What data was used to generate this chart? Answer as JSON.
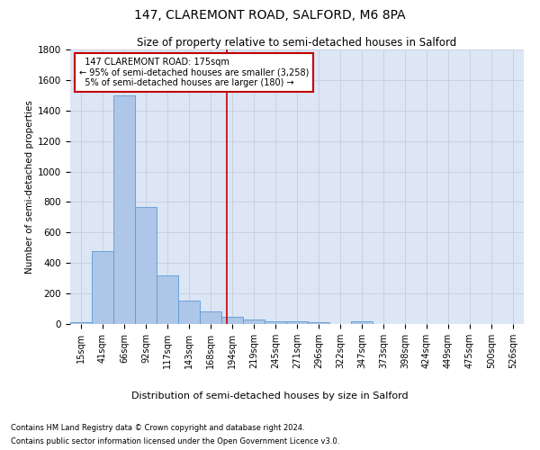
{
  "title": "147, CLAREMONT ROAD, SALFORD, M6 8PA",
  "subtitle": "Size of property relative to semi-detached houses in Salford",
  "xlabel": "Distribution of semi-detached houses by size in Salford",
  "ylabel": "Number of semi-detached properties",
  "footer1": "Contains HM Land Registry data © Crown copyright and database right 2024.",
  "footer2": "Contains public sector information licensed under the Open Government Licence v3.0.",
  "categories": [
    "15sqm",
    "41sqm",
    "66sqm",
    "92sqm",
    "117sqm",
    "143sqm",
    "168sqm",
    "194sqm",
    "219sqm",
    "245sqm",
    "271sqm",
    "296sqm",
    "322sqm",
    "347sqm",
    "373sqm",
    "398sqm",
    "424sqm",
    "449sqm",
    "475sqm",
    "500sqm",
    "526sqm"
  ],
  "values": [
    10,
    480,
    1500,
    770,
    320,
    155,
    80,
    45,
    30,
    15,
    15,
    10,
    0,
    15,
    0,
    0,
    0,
    0,
    0,
    0,
    0
  ],
  "bar_color": "#aec6e8",
  "bar_edge_color": "#5b9bd5",
  "vline_color": "#c00000",
  "vline_x": 6.75,
  "annotation_text": "  147 CLAREMONT ROAD: 175sqm\n← 95% of semi-detached houses are smaller (3,258)\n  5% of semi-detached houses are larger (180) →",
  "annotation_box_facecolor": "#ffffff",
  "annotation_box_edgecolor": "#c00000",
  "ylim": [
    0,
    1800
  ],
  "yticks": [
    0,
    200,
    400,
    600,
    800,
    1000,
    1200,
    1400,
    1600,
    1800
  ],
  "ax_facecolor": "#dce6f5",
  "background_color": "#ffffff",
  "grid_color": "#c5cfe0",
  "title_fontsize": 10,
  "subtitle_fontsize": 8.5,
  "ylabel_fontsize": 7.5,
  "xlabel_fontsize": 8,
  "tick_fontsize": 7,
  "footer_fontsize": 6,
  "annot_fontsize": 7
}
